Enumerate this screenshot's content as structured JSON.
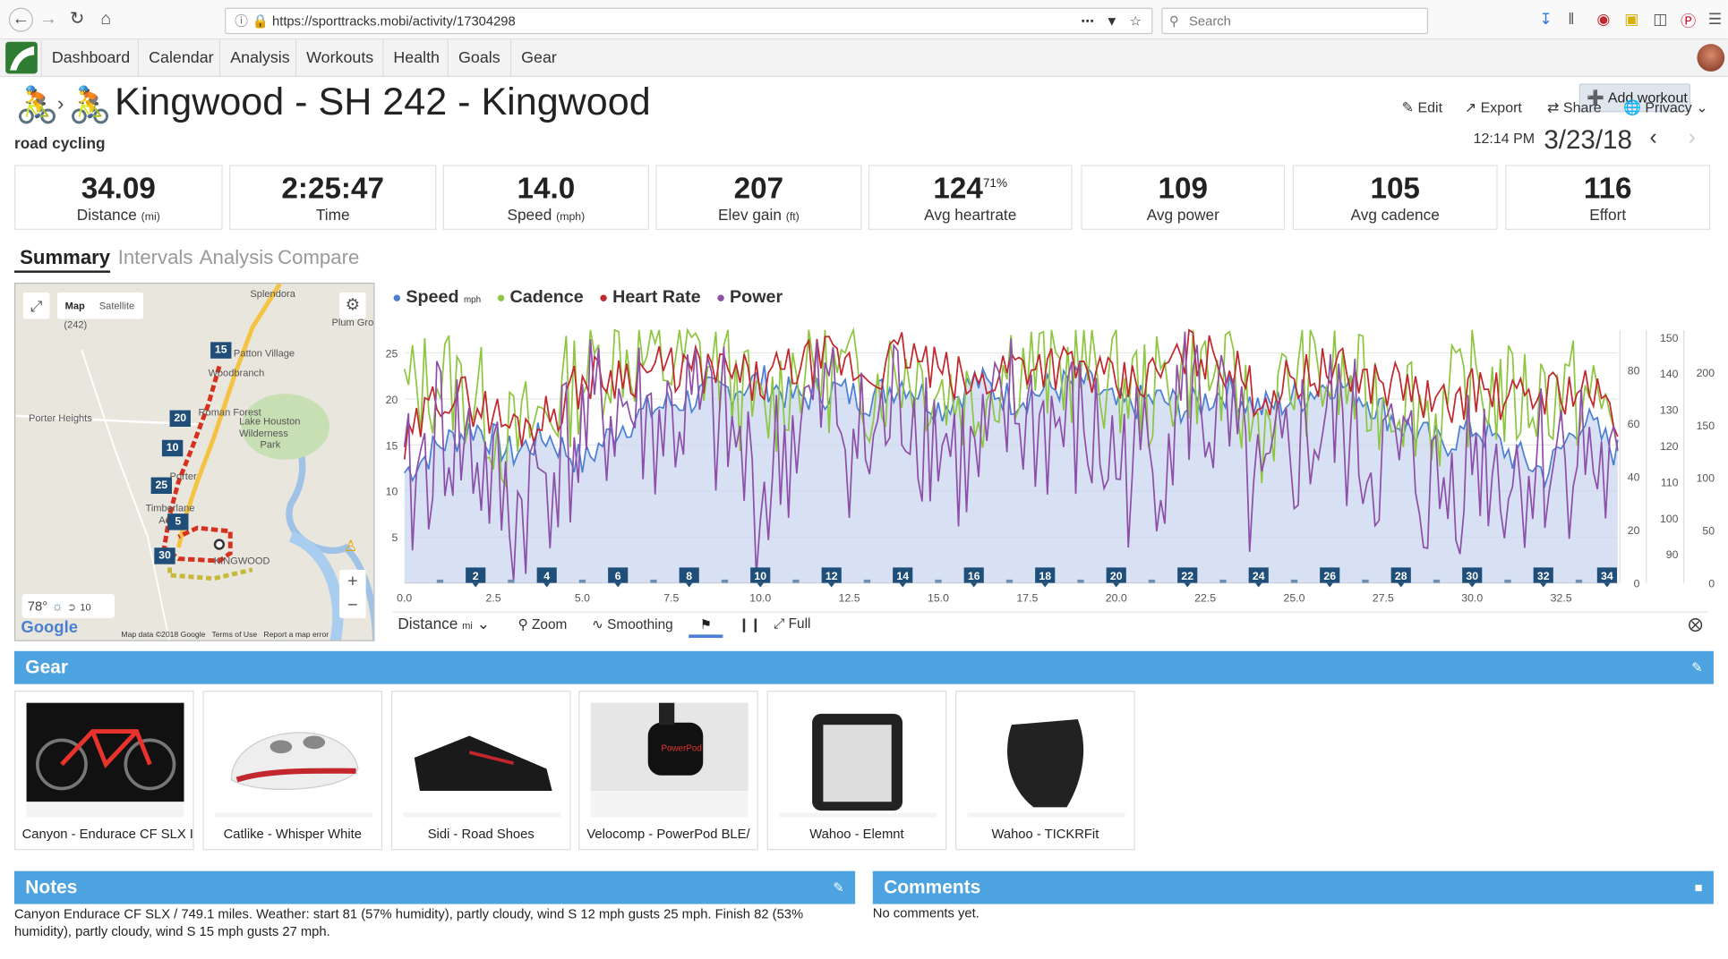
{
  "browser": {
    "url": "https://sporttracks.mobi/activity/17304298",
    "search_placeholder": "Search"
  },
  "nav": {
    "items": [
      "Dashboard",
      "Calendar",
      "Analysis",
      "Workouts",
      "Health",
      "Goals",
      "Gear"
    ],
    "add_workout": "Add workout"
  },
  "activity": {
    "title": "Kingwood - SH 242 - Kingwood",
    "type": "road cycling",
    "time": "12:14 PM",
    "date": "3/23/18",
    "actions": {
      "edit": "Edit",
      "export": "Export",
      "share": "Share",
      "privacy": "Privacy"
    }
  },
  "stats": [
    {
      "value": "34.09",
      "label": "Distance",
      "unit": "(mi)"
    },
    {
      "value": "2:25:47",
      "label": "Time",
      "unit": ""
    },
    {
      "value": "14.0",
      "label": "Speed",
      "unit": "(mph)"
    },
    {
      "value": "207",
      "label": "Elev gain",
      "unit": "(ft)"
    },
    {
      "value": "124",
      "sup": "71%",
      "label": "Avg heartrate",
      "unit": ""
    },
    {
      "value": "109",
      "label": "Avg power",
      "unit": ""
    },
    {
      "value": "105",
      "label": "Avg cadence",
      "unit": ""
    },
    {
      "value": "116",
      "label": "Effort",
      "unit": ""
    }
  ],
  "tabs": [
    "Summary",
    "Intervals",
    "Analysis",
    "Compare"
  ],
  "map": {
    "map_btn": "Map",
    "satellite_btn": "Satellite",
    "temp": "78°",
    "wind": "10",
    "attribution": "Map data ©2018 Google",
    "terms": "Terms of Use",
    "report": "Report a map error",
    "brand": "Google",
    "places": [
      "Splendora",
      "Plum Gro",
      "Patton Village",
      "Woodbranch",
      "Porter Heights",
      "Roman Forest",
      "Lake Houston",
      "Wilderness",
      "Park",
      "Porter",
      "Timberlane",
      "Acres",
      "KINGWOOD",
      "(242)"
    ],
    "markers": [
      "15",
      "20",
      "10",
      "25",
      "5",
      "30"
    ]
  },
  "chart_data": {
    "type": "line",
    "legend": [
      {
        "name": "Speed",
        "unit": "mph",
        "color": "#4a7fd4"
      },
      {
        "name": "Cadence",
        "unit": "",
        "color": "#8dc63f"
      },
      {
        "name": "Heart Rate",
        "unit": "",
        "color": "#c1272d"
      },
      {
        "name": "Power",
        "unit": "",
        "color": "#8e4fa9"
      }
    ],
    "x_ticks": [
      "0.0",
      "2.5",
      "5.0",
      "7.5",
      "10.0",
      "12.5",
      "15.0",
      "17.5",
      "20.0",
      "22.5",
      "25.0",
      "27.5",
      "30.0",
      "32.5"
    ],
    "xlim": [
      0,
      34.09
    ],
    "y_speed_ticks": [
      "25",
      "20",
      "15",
      "10",
      "5"
    ],
    "y_cadence_ticks": [
      "80",
      "60",
      "40",
      "20",
      "0"
    ],
    "y_hr_ticks": [
      "150",
      "140",
      "130",
      "120",
      "110",
      "100",
      "90"
    ],
    "y_power_ticks": [
      "200",
      "150",
      "100",
      "50",
      "0"
    ],
    "lap_markers": [
      "2",
      "4",
      "6",
      "8",
      "10",
      "12",
      "14",
      "16",
      "18",
      "20",
      "22",
      "24",
      "26",
      "28",
      "30",
      "32",
      "34"
    ],
    "series": [
      {
        "name": "Speed",
        "values": [
          12,
          15,
          17,
          14,
          16,
          13,
          17,
          19,
          20,
          21,
          22,
          20,
          21,
          20,
          22,
          19,
          22,
          20,
          21,
          22,
          19,
          20,
          19,
          21,
          19,
          20,
          22,
          20,
          17,
          15,
          17,
          14,
          12,
          18,
          14
        ]
      },
      {
        "name": "Cadence",
        "values": [
          70,
          78,
          70,
          52,
          64,
          78,
          88,
          82,
          84,
          80,
          60,
          82,
          78,
          74,
          82,
          74,
          68,
          84,
          78,
          82,
          76,
          70,
          82,
          74,
          58,
          78,
          76,
          70,
          72,
          62,
          76,
          68,
          72,
          70,
          62
        ]
      },
      {
        "name": "Heart Rate",
        "values": [
          118,
          135,
          132,
          125,
          128,
          138,
          140,
          141,
          141,
          140,
          137,
          142,
          144,
          139,
          146,
          140,
          136,
          143,
          143,
          141,
          136,
          139,
          146,
          143,
          133,
          139,
          141,
          138,
          137,
          130,
          136,
          132,
          135,
          136,
          128
        ]
      },
      {
        "name": "Power",
        "values": [
          70,
          150,
          120,
          60,
          110,
          140,
          170,
          150,
          160,
          140,
          80,
          150,
          170,
          120,
          180,
          140,
          100,
          160,
          150,
          140,
          110,
          120,
          180,
          140,
          60,
          130,
          150,
          120,
          110,
          80,
          130,
          100,
          120,
          130,
          80
        ]
      }
    ]
  },
  "chart_controls": {
    "axis": "Distance",
    "axis_unit": "mi",
    "zoom": "Zoom",
    "smoothing": "Smoothing",
    "full": "Full"
  },
  "gear": {
    "title": "Gear",
    "items": [
      "Canyon - Endurace CF SLX I",
      "Catlike - Whisper White",
      "Sidi - Road Shoes",
      "Velocomp - PowerPod BLE/",
      "Wahoo - Elemnt",
      "Wahoo - TICKRFit"
    ]
  },
  "notes": {
    "title": "Notes",
    "text": "Canyon Endurace CF SLX / 749.1 miles. Weather: start 81 (57% humidity), partly cloudy, wind S 12 mph gusts 25 mph. Finish 82 (53% humidity), partly cloudy, wind S 15 mph gusts 27 mph."
  },
  "comments": {
    "title": "Comments",
    "text": "No comments yet."
  }
}
